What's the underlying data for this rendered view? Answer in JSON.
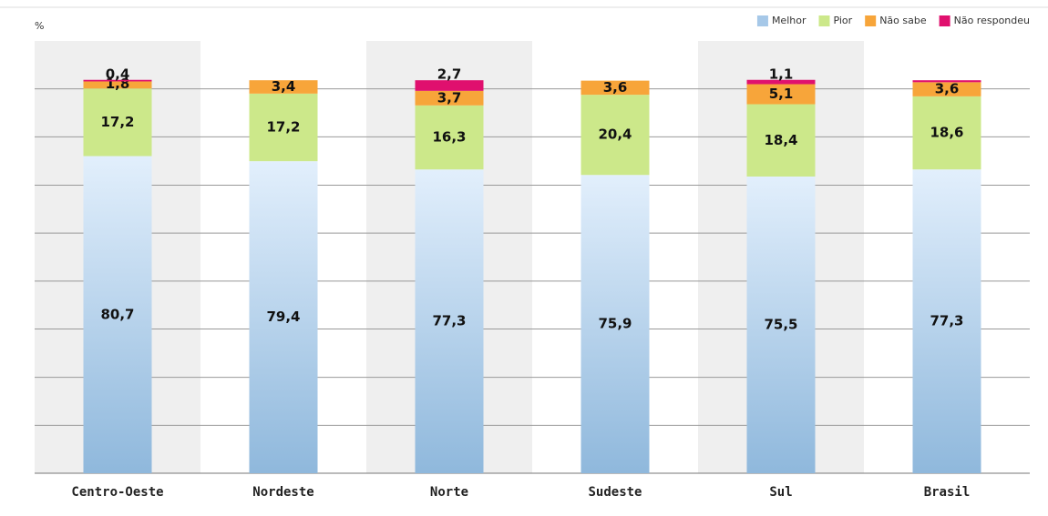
{
  "chart_data": {
    "type": "stacked_bar",
    "y_label": "%",
    "categories": [
      "Centro-Oeste",
      "Nordeste",
      "Norte",
      "Sudeste",
      "Sul",
      "Brasil"
    ],
    "series": [
      {
        "name": "Melhor",
        "color": "#a6c8e8",
        "values": [
          80.7,
          79.4,
          77.3,
          75.9,
          75.5,
          77.3
        ],
        "value_labels": [
          "80,7",
          "79,4",
          "77,3",
          "75,9",
          "75,5",
          "77,3"
        ]
      },
      {
        "name": "Pior",
        "color": "#cce88a",
        "values": [
          17.2,
          17.2,
          16.3,
          20.4,
          18.4,
          18.6
        ],
        "value_labels": [
          "17,2",
          "17,2",
          "16,3",
          "20,4",
          "18,4",
          "18,6"
        ]
      },
      {
        "name": "Não sabe",
        "color": "#f7a53a",
        "values": [
          1.8,
          3.4,
          3.7,
          3.6,
          5.1,
          3.6
        ],
        "value_labels": [
          "1,8",
          "3,4",
          "3,7",
          "3,6",
          "5,1",
          "3,6"
        ]
      },
      {
        "name": "Não respondeu",
        "color": "#e0106e",
        "values": [
          0.4,
          null,
          2.7,
          null,
          1.1,
          0.5
        ],
        "value_labels": [
          "0,4",
          null,
          "2,7",
          null,
          "1,1",
          null
        ]
      }
    ],
    "ylim": [
      0,
      110
    ],
    "yticks": [
      0,
      12.2,
      24.4,
      36.7,
      48.9,
      61.1,
      73.3,
      85.6,
      97.8
    ],
    "grid": true,
    "legend": "top-right"
  }
}
